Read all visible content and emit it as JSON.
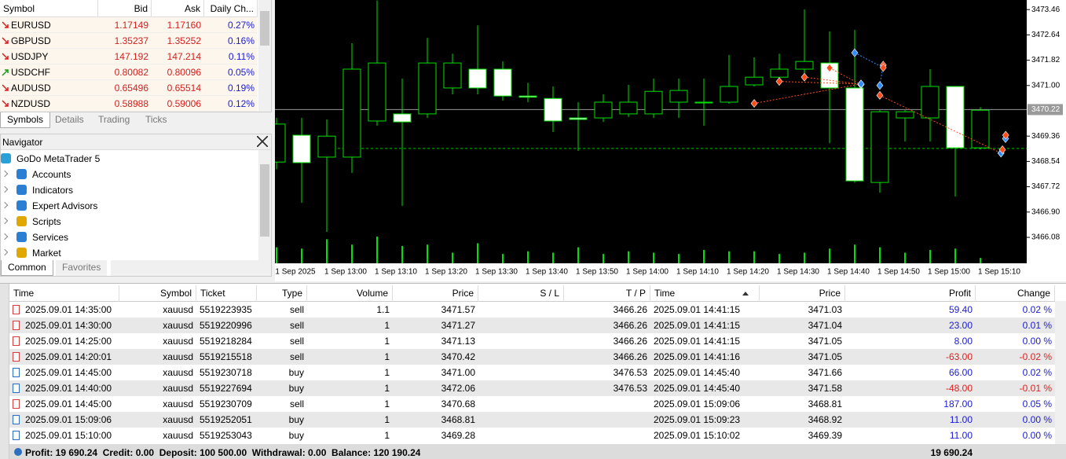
{
  "market_watch": {
    "columns": [
      "Symbol",
      "Bid",
      "Ask",
      "Daily Ch..."
    ],
    "rows": [
      {
        "symbol": "EURUSD",
        "bid": "1.17149",
        "ask": "1.17160",
        "change": "0.27%",
        "icon": "down"
      },
      {
        "symbol": "GBPUSD",
        "bid": "1.35237",
        "ask": "1.35252",
        "change": "0.16%",
        "icon": "down"
      },
      {
        "symbol": "USDJPY",
        "bid": "147.192",
        "ask": "147.214",
        "change": "0.11%",
        "icon": "down"
      },
      {
        "symbol": "USDCHF",
        "bid": "0.80082",
        "ask": "0.80096",
        "change": "0.05%",
        "icon": "up"
      },
      {
        "symbol": "AUDUSD",
        "bid": "0.65496",
        "ask": "0.65514",
        "change": "0.19%",
        "icon": "down"
      },
      {
        "symbol": "NZDUSD",
        "bid": "0.58988",
        "ask": "0.59006",
        "change": "0.12%",
        "icon": "down"
      }
    ],
    "tabs": [
      "Symbols",
      "Details",
      "Trading",
      "Ticks"
    ]
  },
  "navigator": {
    "title": "Navigator",
    "items": [
      "GoDo MetaTrader 5",
      "Accounts",
      "Indicators",
      "Expert Advisors",
      "Scripts",
      "Services",
      "Market"
    ],
    "tabs": [
      "Common",
      "Favorites"
    ]
  },
  "chart": {
    "type": "candlestick",
    "ylim": [
      3465.24,
      3473.77
    ],
    "yticks": [
      3473.46,
      3472.64,
      3471.82,
      {
        "value": 3471.0,
        "label": "3471.00"
      },
      3469.36,
      3468.54,
      3467.72,
      {
        "value": 3466.9,
        "label": "3466.90"
      },
      3466.08
    ],
    "bid_line": {
      "value": 3470.22,
      "label": "3470.22"
    },
    "dashed_level": 3468.96,
    "xticks": [
      "1 Sep 2025",
      "1 Sep 13:00",
      "1 Sep 13:10",
      "1 Sep 13:20",
      "1 Sep 13:30",
      "1 Sep 13:40",
      "1 Sep 13:50",
      "1 Sep 14:00",
      "1 Sep 14:10",
      "1 Sep 14:20",
      "1 Sep 14:30",
      "1 Sep 14:40",
      "1 Sep 14:50",
      "1 Sep 15:00",
      "1 Sep 15:10"
    ],
    "candles": [
      [
        3468.52,
        3469.95,
        3468.29,
        3469.75
      ],
      [
        3469.39,
        3469.95,
        3467.2,
        3468.5
      ],
      [
        3468.68,
        3469.9,
        3466.26,
        3469.36
      ],
      [
        3468.68,
        3472.37,
        3468.17,
        3471.53
      ],
      [
        3469.85,
        3473.75,
        3469.7,
        3471.73
      ],
      [
        3470.08,
        3471.22,
        3467.1,
        3469.82
      ],
      [
        3470.08,
        3472.54,
        3469.95,
        3471.73
      ],
      [
        3470.92,
        3472.03,
        3470.71,
        3471.73
      ],
      [
        3471.53,
        3472.95,
        3470.71,
        3470.92
      ],
      [
        3471.53,
        3471.78,
        3470.51,
        3470.66
      ],
      [
        3470.66,
        3471.09,
        3470.46,
        3470.62
      ],
      [
        3470.58,
        3470.97,
        3469.49,
        3469.85
      ],
      [
        3469.95,
        3470.46,
        3468.88,
        3469.9
      ],
      [
        3469.95,
        3470.71,
        3469.82,
        3470.46
      ],
      [
        3470.08,
        3471.02,
        3469.98,
        3470.46
      ],
      [
        3470.08,
        3471.22,
        3469.95,
        3470.81
      ],
      [
        3470.46,
        3471.22,
        3469.95,
        3470.84
      ],
      [
        3470.46,
        3471.22,
        3469.7,
        3470.46
      ],
      [
        3470.46,
        3471.99,
        3470.41,
        3470.97
      ],
      [
        3471.02,
        3471.91,
        3470.97,
        3471.27
      ],
      [
        3471.27,
        3472.03,
        3471.22,
        3471.53
      ],
      [
        3471.53,
        3473.46,
        3471.22,
        3471.78
      ],
      [
        3471.73,
        3472.75,
        3469.13,
        3470.92
      ],
      [
        3470.92,
        3472.8,
        3467.85,
        3467.91
      ],
      [
        3467.86,
        3470.2,
        3467.53,
        3470.15
      ],
      [
        3469.95,
        3470.2,
        3469.19,
        3470.15
      ],
      [
        3469.95,
        3471.53,
        3469.19,
        3470.97
      ],
      [
        3470.97,
        3470.97,
        3467.4,
        3468.98
      ],
      [
        3468.98,
        3470.3,
        3468.93,
        3470.2
      ]
    ],
    "volumes": [
      60,
      55,
      90,
      70,
      100,
      65,
      70,
      40,
      75,
      35,
      45,
      40,
      60,
      35,
      45,
      40,
      35,
      50,
      45,
      45,
      35,
      40,
      55,
      70,
      60,
      40,
      50,
      55,
      20
    ]
  },
  "trades": {
    "columns": [
      "Time",
      "Symbol",
      "Ticket",
      "Type",
      "Volume",
      "Price",
      "S / L",
      "T / P",
      "Time",
      "Price",
      "Profit",
      "Change"
    ],
    "rows": [
      [
        "2025.09.01 14:35:00",
        "xauusd",
        "5519223935",
        "sell",
        "1.1",
        "3471.57",
        null,
        "3466.26",
        "2025.09.01 14:41:15",
        "3471.03",
        "59.40",
        "0.02 %"
      ],
      [
        "2025.09.01 14:30:00",
        "xauusd",
        "5519220996",
        "sell",
        "1",
        "3471.27",
        null,
        "3466.26",
        "2025.09.01 14:41:15",
        "3471.04",
        "23.00",
        "0.01 %"
      ],
      [
        "2025.09.01 14:25:00",
        "xauusd",
        "5519218284",
        "sell",
        "1",
        "3471.13",
        null,
        "3466.26",
        "2025.09.01 14:41:15",
        "3471.05",
        "8.00",
        "0.00 %"
      ],
      [
        "2025.09.01 14:20:01",
        "xauusd",
        "5519215518",
        "sell",
        "1",
        "3470.42",
        null,
        "3466.26",
        "2025.09.01 14:41:16",
        "3471.05",
        "-63.00",
        "-0.02 %"
      ],
      [
        "2025.09.01 14:45:00",
        "xauusd",
        "5519230718",
        "buy",
        "1",
        "3471.00",
        null,
        "3476.53",
        "2025.09.01 14:45:40",
        "3471.66",
        "66.00",
        "0.02 %"
      ],
      [
        "2025.09.01 14:40:00",
        "xauusd",
        "5519227694",
        "buy",
        "1",
        "3472.06",
        null,
        "3476.53",
        "2025.09.01 14:45:40",
        "3471.58",
        "-48.00",
        "-0.01 %"
      ],
      [
        "2025.09.01 14:45:00",
        "xauusd",
        "5519230709",
        "sell",
        "1",
        "3470.68",
        null,
        null,
        "2025.09.01 15:09:06",
        "3468.81",
        "187.00",
        "0.05 %"
      ],
      [
        "2025.09.01 15:09:06",
        "xauusd",
        "5519252051",
        "buy",
        "1",
        "3468.81",
        null,
        null,
        "2025.09.01 15:09:23",
        "3468.92",
        "11.00",
        "0.00 %"
      ],
      [
        "2025.09.01 15:10:00",
        "xauusd",
        "5519253043",
        "buy",
        "1",
        "3469.28",
        null,
        null,
        "2025.09.01 15:10:02",
        "3469.39",
        "11.00",
        "0.00 %"
      ]
    ],
    "footer_summary": "Profit: 19 690.24  Credit: 0.00  Deposit: 100 500.00  Withdrawal: 0.00  Balance: 120 190.24",
    "footer_profit": "19 690.24"
  }
}
